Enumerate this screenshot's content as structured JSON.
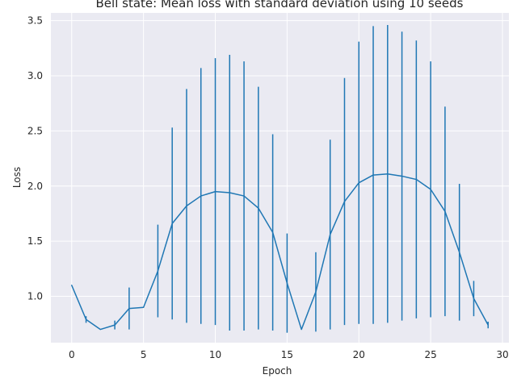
{
  "chart_data": {
    "type": "line",
    "title": "Bell state: Mean loss with standard deviation using 10 seeds",
    "xlabel": "Epoch",
    "ylabel": "Loss",
    "xlim": [
      -1.45,
      30.45
    ],
    "ylim": [
      0.58,
      3.57
    ],
    "xticks": [
      0,
      5,
      10,
      15,
      20,
      25,
      30
    ],
    "yticks": [
      1.0,
      1.5,
      2.0,
      2.5,
      3.0,
      3.5
    ],
    "xtick_labels": [
      "0",
      "5",
      "10",
      "15",
      "20",
      "25",
      "30"
    ],
    "ytick_labels": [
      "1.0",
      "1.5",
      "2.0",
      "2.5",
      "3.0",
      "3.5"
    ],
    "grid": true,
    "series": [
      {
        "x": [
          0,
          1,
          2,
          3,
          4,
          5,
          6,
          7,
          8,
          9,
          10,
          11,
          12,
          13,
          14,
          15,
          16,
          17,
          18,
          19,
          20,
          21,
          22,
          23,
          24,
          25,
          26,
          27,
          28,
          29
        ],
        "mean": [
          1.1,
          0.79,
          0.7,
          0.74,
          0.89,
          0.9,
          1.23,
          1.66,
          1.82,
          1.91,
          1.95,
          1.94,
          1.91,
          1.8,
          1.58,
          1.12,
          0.7,
          1.04,
          1.56,
          1.86,
          2.03,
          2.1,
          2.11,
          2.09,
          2.06,
          1.97,
          1.77,
          1.4,
          0.98,
          0.74
        ],
        "std": [
          0.0,
          0.03,
          0.0,
          0.04,
          0.19,
          0.0,
          0.42,
          0.87,
          1.06,
          1.16,
          1.21,
          1.25,
          1.22,
          1.1,
          0.89,
          0.45,
          0.0,
          0.36,
          0.86,
          1.12,
          1.28,
          1.35,
          1.35,
          1.31,
          1.26,
          1.16,
          0.95,
          0.62,
          0.16,
          0.03
        ],
        "color": "#1f77b4"
      }
    ],
    "background_color": "#eaeaf2",
    "grid_color": "#ffffff"
  }
}
